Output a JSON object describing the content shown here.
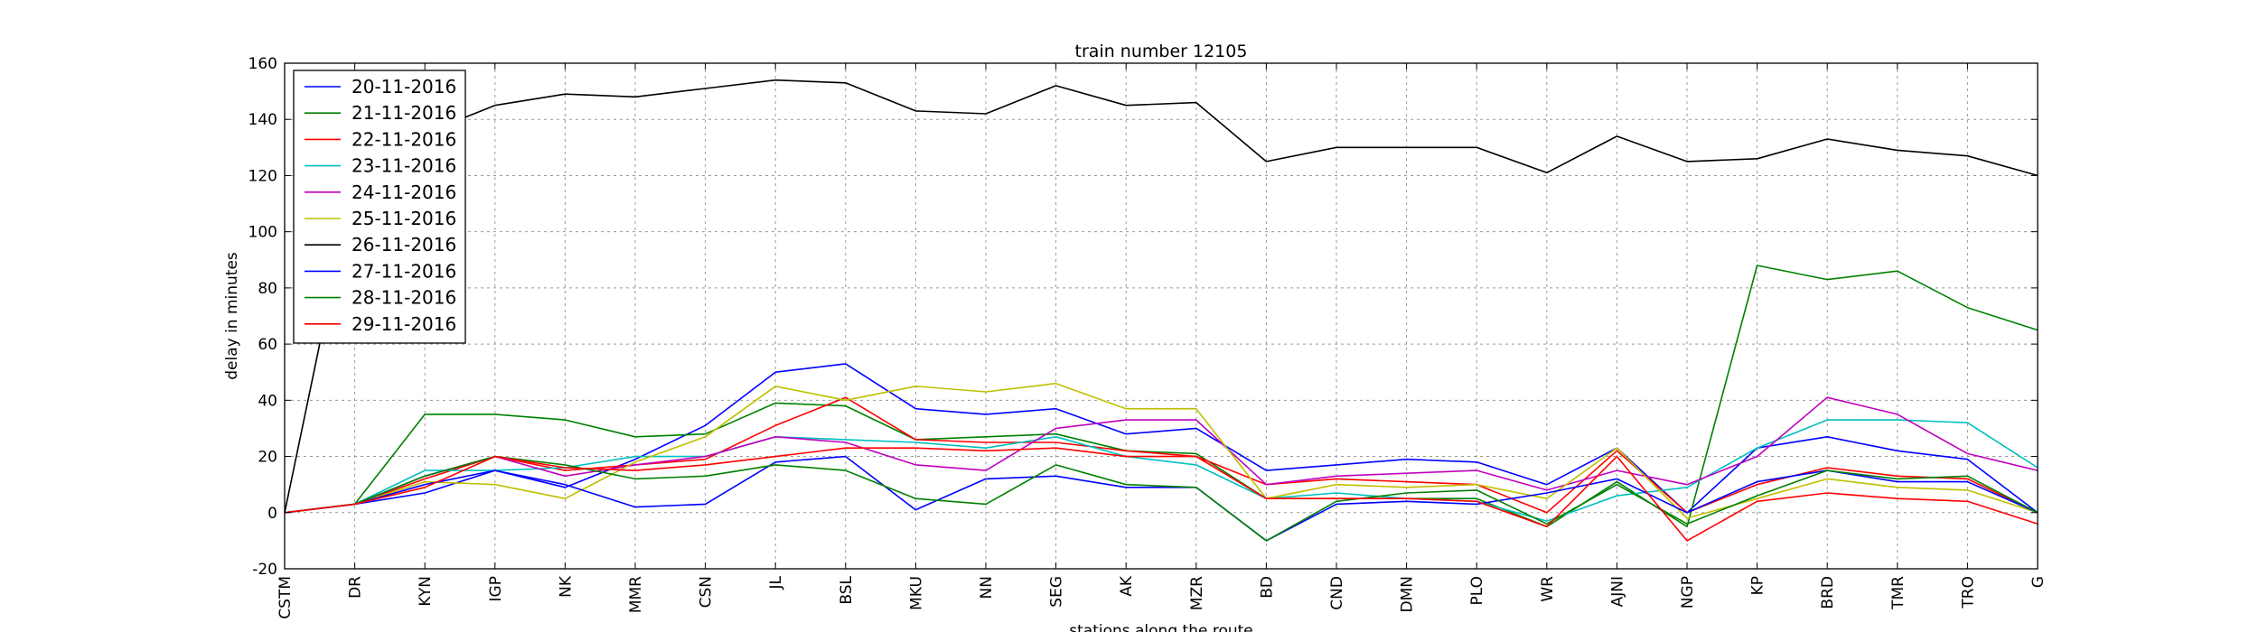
{
  "chart_data": {
    "type": "line",
    "title": "train number 12105",
    "xlabel": "stations along the route",
    "ylabel": "delay in minutes",
    "ylim": [
      -20,
      160
    ],
    "yticks": [
      -20,
      0,
      20,
      40,
      60,
      80,
      100,
      120,
      140,
      160
    ],
    "grid": true,
    "legend": "top-left",
    "categories": [
      "CSTM",
      "DR",
      "KYN",
      "IGP",
      "NK",
      "MMR",
      "CSN",
      "JL",
      "BSL",
      "MKU",
      "NN",
      "SEG",
      "AK",
      "MZR",
      "BD",
      "CND",
      "DMN",
      "PLO",
      "WR",
      "AJNI",
      "NGP",
      "KP",
      "BRD",
      "TMR",
      "TRO",
      "G"
    ],
    "series": [
      {
        "name": "20-11-2016",
        "color": "#0000ff",
        "values": [
          0,
          3,
          7,
          15,
          9,
          19,
          31,
          50,
          53,
          37,
          35,
          37,
          28,
          30,
          15,
          17,
          19,
          18,
          10,
          23,
          0,
          23,
          27,
          22,
          19,
          0
        ]
      },
      {
        "name": "21-11-2016",
        "color": "#008000",
        "values": [
          0,
          3,
          35,
          35,
          33,
          27,
          28,
          39,
          38,
          26,
          27,
          28,
          22,
          21,
          5,
          5,
          5,
          5,
          -5,
          11,
          -5,
          88,
          83,
          86,
          73,
          65
        ]
      },
      {
        "name": "22-11-2016",
        "color": "#ff0000",
        "values": [
          0,
          3,
          12,
          20,
          15,
          17,
          19,
          31,
          41,
          26,
          25,
          25,
          22,
          20,
          10,
          12,
          11,
          10,
          0,
          22,
          0,
          10,
          16,
          13,
          12,
          0
        ]
      },
      {
        "name": "23-11-2016",
        "color": "#00bfbf",
        "values": [
          0,
          3,
          15,
          15,
          16,
          20,
          20,
          27,
          26,
          25,
          23,
          27,
          20,
          17,
          5,
          7,
          5,
          4,
          -3,
          6,
          9,
          23,
          33,
          33,
          32,
          16
        ]
      },
      {
        "name": "24-11-2016",
        "color": "#bf00bf",
        "values": [
          0,
          3,
          13,
          20,
          13,
          17,
          20,
          27,
          25,
          17,
          15,
          30,
          33,
          33,
          10,
          13,
          14,
          15,
          8,
          15,
          10,
          20,
          41,
          35,
          21,
          15
        ]
      },
      {
        "name": "25-11-2016",
        "color": "#bfbf00",
        "values": [
          0,
          3,
          11,
          10,
          5,
          18,
          27,
          45,
          40,
          45,
          43,
          46,
          37,
          37,
          5,
          10,
          9,
          10,
          5,
          23,
          -2,
          5,
          12,
          9,
          8,
          0
        ]
      },
      {
        "name": "26-11-2016",
        "color": "#000000",
        "values": [
          0,
          120,
          135,
          145,
          149,
          148,
          151,
          154,
          153,
          143,
          142,
          152,
          145,
          146,
          125,
          130,
          130,
          130,
          121,
          134,
          125,
          126,
          133,
          129,
          127,
          120
        ]
      },
      {
        "name": "27-11-2016",
        "color": "#0000ff",
        "values": [
          0,
          3,
          10,
          15,
          10,
          2,
          3,
          18,
          20,
          1,
          12,
          13,
          9,
          9,
          -10,
          3,
          4,
          3,
          7,
          12,
          0,
          11,
          15,
          11,
          11,
          0
        ]
      },
      {
        "name": "28-11-2016",
        "color": "#008000",
        "values": [
          0,
          3,
          13,
          20,
          17,
          12,
          13,
          17,
          15,
          5,
          3,
          17,
          10,
          9,
          -10,
          4,
          7,
          8,
          -4,
          10,
          -4,
          6,
          15,
          12,
          13,
          0
        ]
      },
      {
        "name": "29-11-2016",
        "color": "#ff0000",
        "values": [
          0,
          3,
          9,
          20,
          16,
          15,
          17,
          20,
          23,
          23,
          22,
          23,
          20,
          20,
          5,
          5,
          5,
          4,
          -5,
          20,
          -10,
          4,
          7,
          5,
          4,
          -4
        ]
      }
    ]
  }
}
